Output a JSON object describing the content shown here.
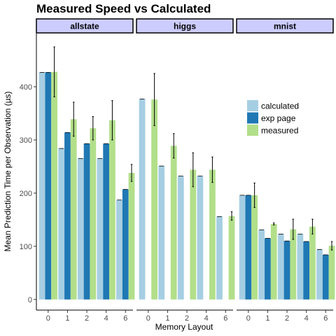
{
  "chart_data": {
    "type": "bar",
    "title": "Measured Speed vs Calculated",
    "xlabel": "Memory Layout",
    "ylabel": "Mean Prediction Time per Observation (µs)",
    "ylim": [
      -20,
      500
    ],
    "yticks": [
      0,
      100,
      200,
      300,
      400
    ],
    "categories": [
      "0",
      "1",
      "2",
      "4",
      "6"
    ],
    "legend_position": "right",
    "series_names": [
      "calculated",
      "exp page",
      "measured"
    ],
    "series_colors": [
      "#a6cee3",
      "#1f78b4",
      "#b2df8a"
    ],
    "panels": [
      {
        "name": "allstate",
        "calculated": [
          427,
          284,
          265,
          265,
          187
        ],
        "exp_page": [
          427,
          314,
          293,
          293,
          207
        ],
        "measured": [
          428,
          339,
          322,
          337,
          238
        ],
        "measured_error": [
          47,
          32,
          22,
          37,
          16
        ]
      },
      {
        "name": "higgs",
        "calculated": [
          377,
          251,
          232,
          232,
          156
        ],
        "exp_page": [
          null,
          null,
          null,
          null,
          null
        ],
        "measured": [
          376,
          289,
          244,
          244,
          157
        ],
        "measured_error": [
          49,
          23,
          32,
          24,
          8
        ]
      },
      {
        "name": "mnist",
        "calculated": [
          196,
          131,
          123,
          123,
          94
        ],
        "exp_page": [
          196,
          115,
          110,
          109,
          84
        ],
        "measured": [
          196,
          142,
          132,
          137,
          101
        ],
        "measured_error": [
          23,
          2,
          19,
          14,
          8
        ]
      }
    ]
  }
}
